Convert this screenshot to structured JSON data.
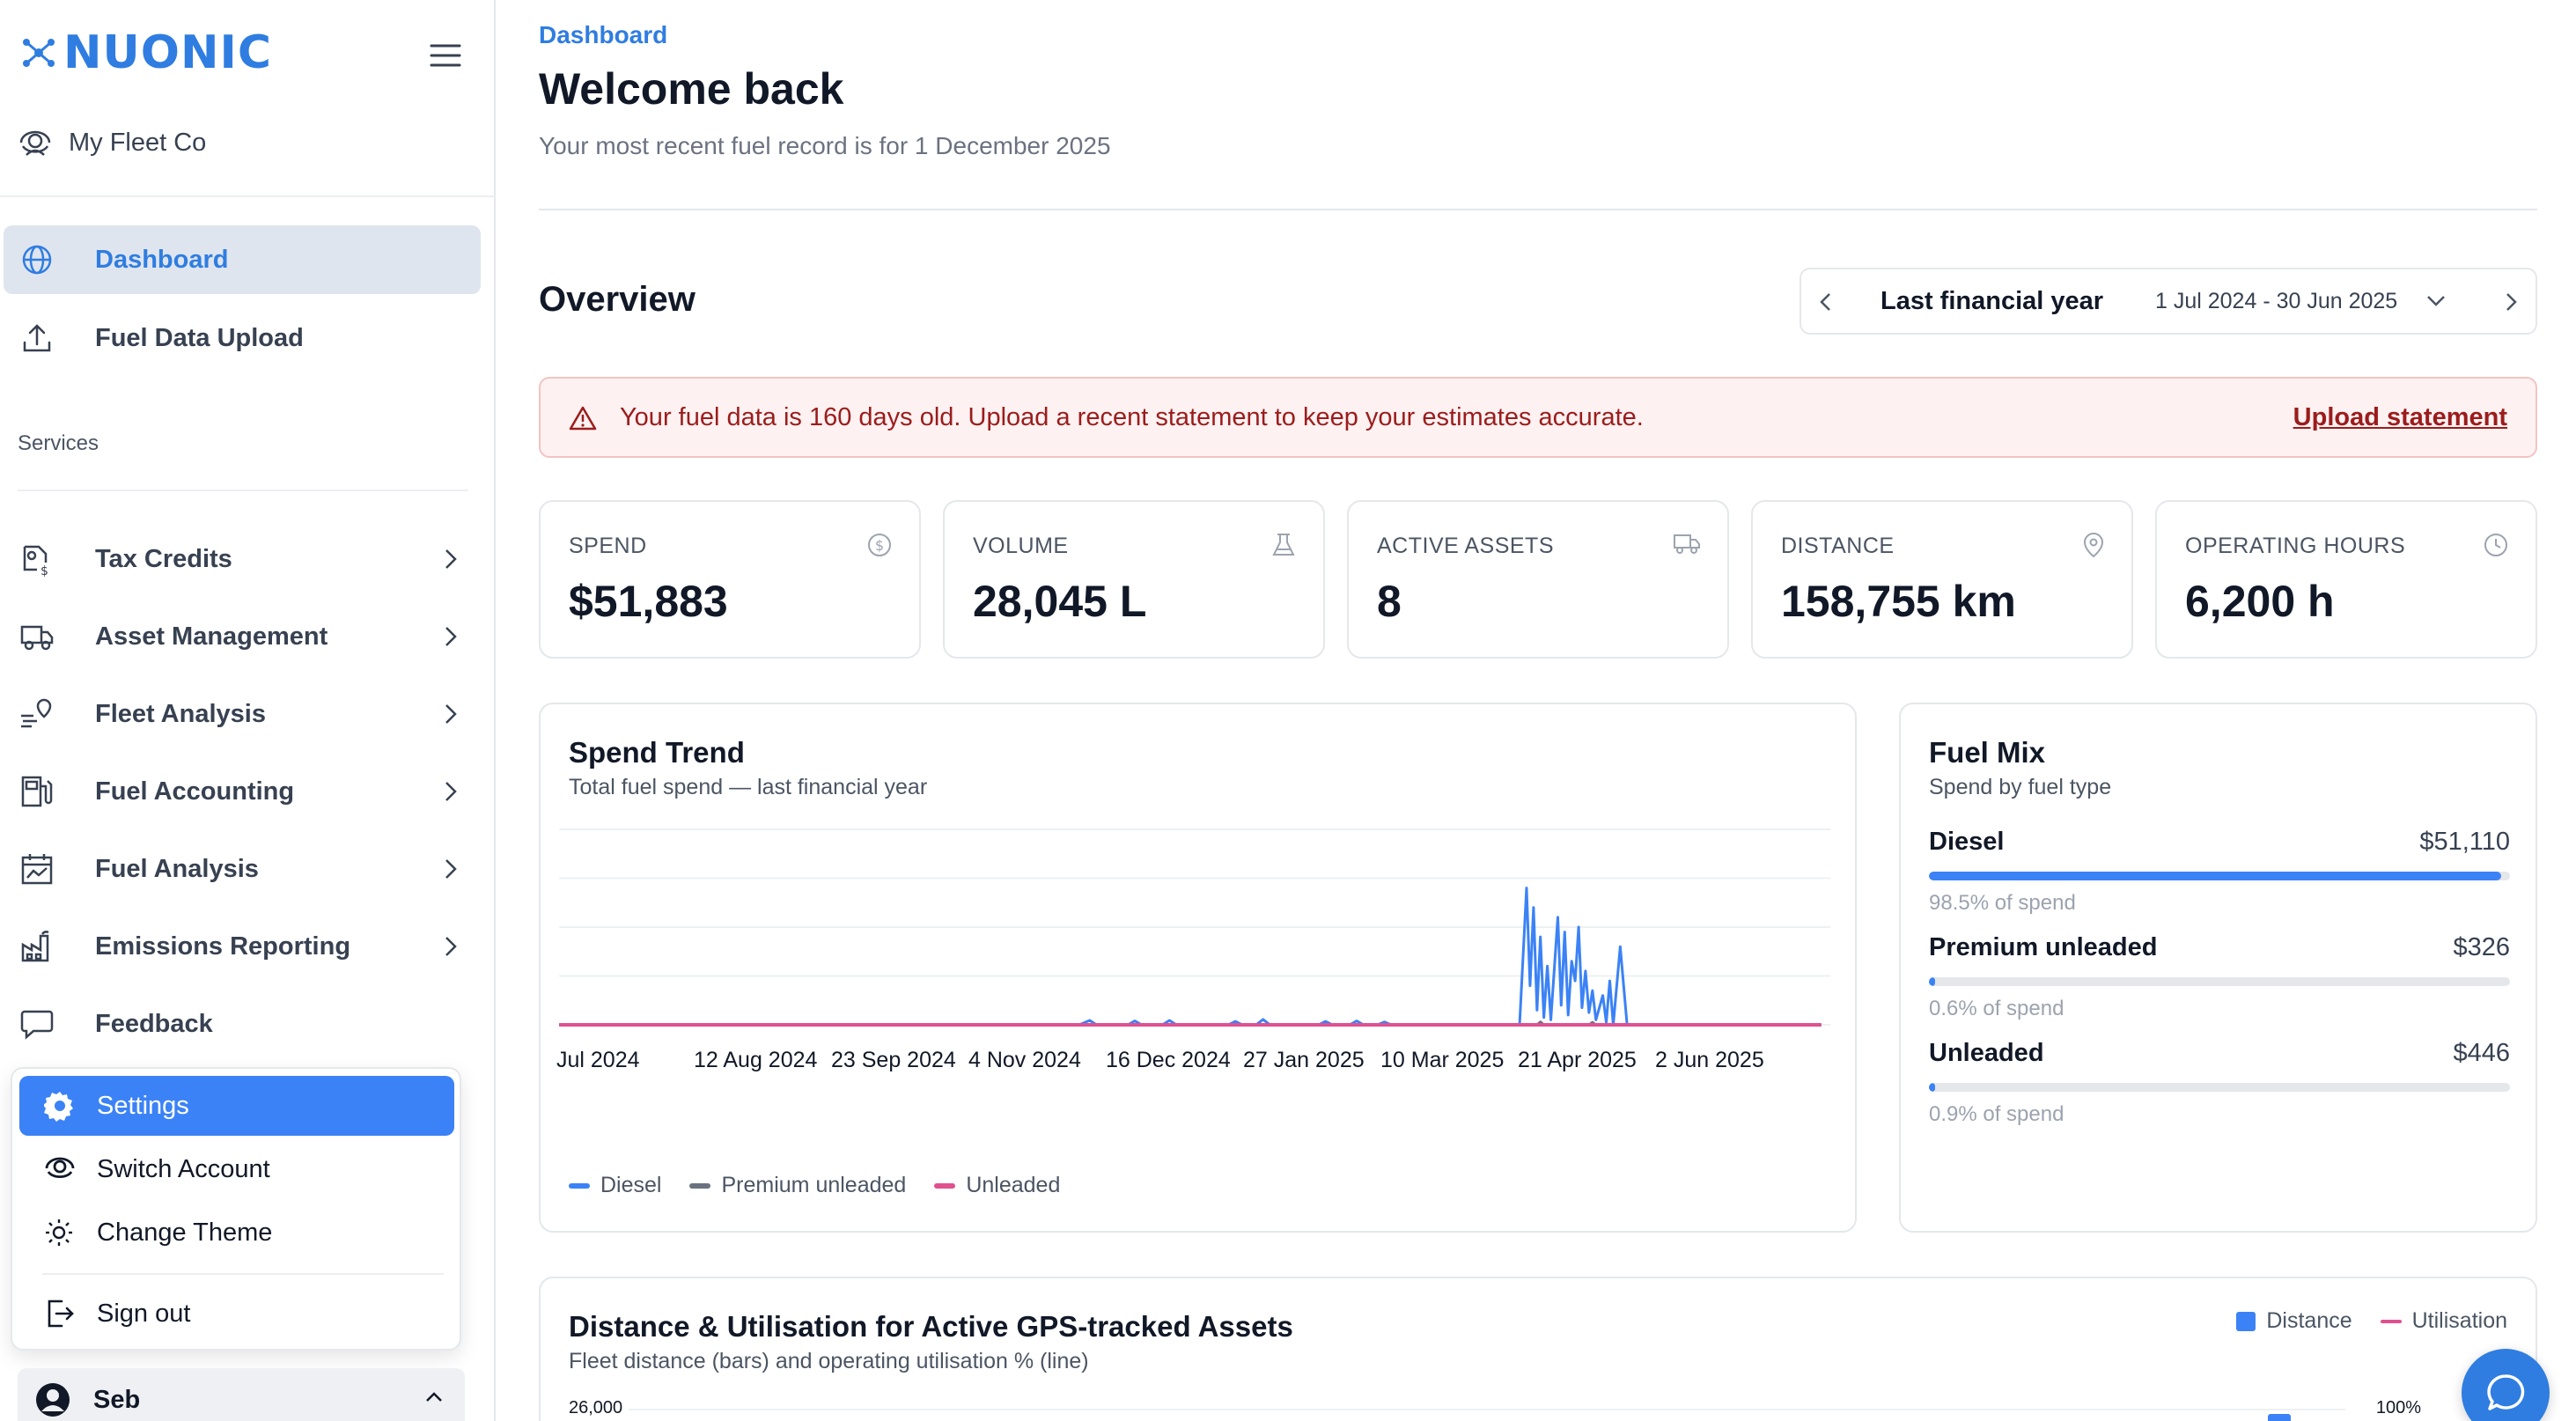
{
  "brand": {
    "name": "NUONIC",
    "accent": "#2f7de1"
  },
  "org": {
    "name": "My Fleet Co"
  },
  "nav": {
    "primary": [
      {
        "label": "Dashboard",
        "icon": "globe-icon",
        "active": true
      },
      {
        "label": "Fuel Data Upload",
        "icon": "upload-icon"
      }
    ],
    "services_label": "Services",
    "services": [
      {
        "label": "Tax Credits",
        "icon": "tax-icon"
      },
      {
        "label": "Asset Management",
        "icon": "truck-icon"
      },
      {
        "label": "Fleet Analysis",
        "icon": "route-icon"
      },
      {
        "label": "Fuel Accounting",
        "icon": "fuel-pump-icon"
      },
      {
        "label": "Fuel Analysis",
        "icon": "calendar-chart-icon"
      },
      {
        "label": "Emissions Reporting",
        "icon": "factory-icon"
      }
    ],
    "feedback": "Feedback"
  },
  "user_menu": {
    "items": [
      {
        "label": "Settings",
        "icon": "gear-icon",
        "active": true
      },
      {
        "label": "Switch Account",
        "icon": "switch-account-icon"
      },
      {
        "label": "Change Theme",
        "icon": "sun-icon"
      },
      {
        "label": "Sign out",
        "icon": "sign-out-icon"
      }
    ],
    "user_name": "Seb"
  },
  "header": {
    "breadcrumb": "Dashboard",
    "title": "Welcome back",
    "subtitle": "Your most recent fuel record is for 1 December 2025"
  },
  "overview": {
    "title": "Overview",
    "range": {
      "name": "Last financial year",
      "dates": "1 Jul 2024 - 30 Jun 2025"
    }
  },
  "alert": {
    "text": "Your fuel data is 160 days old. Upload a recent statement to keep your estimates accurate.",
    "link": "Upload statement"
  },
  "kpis": [
    {
      "label": "SPEND",
      "value": "$51,883",
      "icon": "dollar-icon"
    },
    {
      "label": "VOLUME",
      "value": "28,045 L",
      "icon": "flask-icon"
    },
    {
      "label": "ACTIVE ASSETS",
      "value": "8",
      "icon": "truck-icon"
    },
    {
      "label": "DISTANCE",
      "value": "158,755 km",
      "icon": "map-pin-icon"
    },
    {
      "label": "OPERATING HOURS",
      "value": "6,200 h",
      "icon": "clock-icon"
    }
  ],
  "spend_trend": {
    "title": "Spend Trend",
    "subtitle": "Total fuel spend — last financial year"
  },
  "fuel_mix": {
    "title": "Fuel Mix",
    "subtitle": "Spend by fuel type",
    "rows": [
      {
        "name": "Diesel",
        "value": "$51,110",
        "pct_label": "98.5% of spend",
        "pct": 98.5
      },
      {
        "name": "Premium unleaded",
        "value": "$326",
        "pct_label": "0.6% of spend",
        "pct": 0.6
      },
      {
        "name": "Unleaded",
        "value": "$446",
        "pct_label": "0.9% of spend",
        "pct": 0.9
      }
    ]
  },
  "distance_util": {
    "title": "Distance & Utilisation for Active GPS-tracked Assets",
    "subtitle": "Fleet distance (bars) and operating utilisation % (line)",
    "legend": [
      "Distance",
      "Utilisation"
    ],
    "y_left_top": "26,000",
    "y_right_top": "100%"
  },
  "colors": {
    "diesel": "#3b82f6",
    "premium": "#6b7280",
    "unleaded": "#e0508f",
    "alert_text": "#9b1c1c"
  },
  "chart_data": {
    "type": "line",
    "x_ticks": [
      "Jul 2024",
      "12 Aug 2024",
      "23 Sep 2024",
      "4 Nov 2024",
      "16 Dec 2024",
      "27 Jan 2025",
      "10 Mar 2025",
      "21 Apr 2025",
      "2 Jun 2025"
    ],
    "x_range": [
      "2024-07-01",
      "2025-06-30"
    ],
    "series": [
      {
        "name": "Diesel",
        "color": "#3b82f6",
        "points": [
          [
            "2024-07-01",
            0
          ],
          [
            "2024-11-28",
            0
          ],
          [
            "2024-12-01",
            90
          ],
          [
            "2024-12-03",
            0
          ],
          [
            "2024-12-12",
            0
          ],
          [
            "2024-12-14",
            80
          ],
          [
            "2024-12-16",
            0
          ],
          [
            "2024-12-22",
            0
          ],
          [
            "2024-12-24",
            90
          ],
          [
            "2024-12-26",
            0
          ],
          [
            "2025-01-10",
            0
          ],
          [
            "2025-01-12",
            70
          ],
          [
            "2025-01-14",
            0
          ],
          [
            "2025-01-18",
            0
          ],
          [
            "2025-01-20",
            110
          ],
          [
            "2025-01-22",
            0
          ],
          [
            "2025-02-05",
            0
          ],
          [
            "2025-02-07",
            70
          ],
          [
            "2025-02-09",
            0
          ],
          [
            "2025-02-14",
            0
          ],
          [
            "2025-02-16",
            80
          ],
          [
            "2025-02-18",
            0
          ],
          [
            "2025-02-22",
            0
          ],
          [
            "2025-02-24",
            60
          ],
          [
            "2025-02-26",
            0
          ],
          [
            "2025-04-04",
            0
          ],
          [
            "2025-04-06",
            2800
          ],
          [
            "2025-04-07",
            800
          ],
          [
            "2025-04-08",
            2400
          ],
          [
            "2025-04-09",
            300
          ],
          [
            "2025-04-10",
            1800
          ],
          [
            "2025-04-11",
            150
          ],
          [
            "2025-04-12",
            1200
          ],
          [
            "2025-04-13",
            100
          ],
          [
            "2025-04-15",
            2200
          ],
          [
            "2025-04-16",
            400
          ],
          [
            "2025-04-17",
            1900
          ],
          [
            "2025-04-18",
            200
          ],
          [
            "2025-04-19",
            1300
          ],
          [
            "2025-04-20",
            900
          ],
          [
            "2025-04-21",
            2000
          ],
          [
            "2025-04-22",
            350
          ],
          [
            "2025-04-23",
            1100
          ],
          [
            "2025-04-24",
            250
          ],
          [
            "2025-04-25",
            700
          ],
          [
            "2025-04-26",
            100
          ],
          [
            "2025-04-28",
            600
          ],
          [
            "2025-04-29",
            50
          ],
          [
            "2025-04-30",
            900
          ],
          [
            "2025-05-01",
            0
          ],
          [
            "2025-05-03",
            1600
          ],
          [
            "2025-05-05",
            0
          ],
          [
            "2025-06-30",
            0
          ]
        ]
      },
      {
        "name": "Premium unleaded",
        "color": "#6b7280",
        "points": [
          [
            "2024-07-01",
            0
          ],
          [
            "2025-04-09",
            0
          ],
          [
            "2025-04-10",
            60
          ],
          [
            "2025-04-11",
            0
          ],
          [
            "2025-04-24",
            0
          ],
          [
            "2025-04-25",
            50
          ],
          [
            "2025-04-26",
            0
          ],
          [
            "2025-06-30",
            0
          ]
        ]
      },
      {
        "name": "Unleaded",
        "color": "#e0508f",
        "points": [
          [
            "2024-07-01",
            0
          ],
          [
            "2025-06-30",
            0
          ]
        ]
      }
    ],
    "y_range": [
      0,
      4000
    ],
    "grid": true,
    "legend_position": "bottom-left"
  }
}
